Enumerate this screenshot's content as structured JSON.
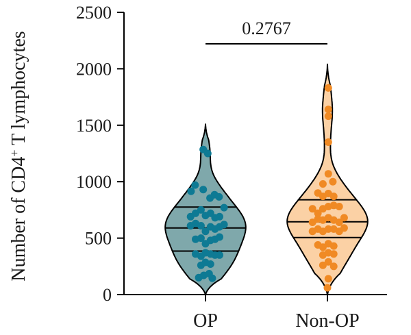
{
  "chart_data": {
    "type": "violin",
    "ylabel_prefix": "Number of CD4",
    "ylabel_sup": "+",
    "ylabel_suffix": " T lymphocytes",
    "ylim": [
      0,
      2500
    ],
    "yticks": [
      "0",
      "500",
      "1000",
      "1500",
      "2000",
      "2500"
    ],
    "categories": [
      "OP",
      "Non-OP"
    ],
    "comparison": {
      "label": "0.2767",
      "between": [
        "OP",
        "Non-OP"
      ]
    },
    "series": [
      {
        "category": "OP",
        "fill": "#7fa8ab",
        "point_color": "#0e7a94",
        "range": [
          0,
          1510
        ],
        "quartiles": [
          385,
          590,
          775
        ],
        "points": [
          {
            "x": -0.05,
            "y": 1285
          },
          {
            "x": 0.05,
            "y": 1250
          },
          {
            "x": -0.32,
            "y": 915
          },
          {
            "x": -0.23,
            "y": 970
          },
          {
            "x": -0.05,
            "y": 930
          },
          {
            "x": 0.1,
            "y": 855
          },
          {
            "x": 0.2,
            "y": 885
          },
          {
            "x": 0.3,
            "y": 865
          },
          {
            "x": -0.33,
            "y": 690
          },
          {
            "x": -0.22,
            "y": 720
          },
          {
            "x": -0.1,
            "y": 750
          },
          {
            "x": 0.0,
            "y": 700
          },
          {
            "x": 0.11,
            "y": 720
          },
          {
            "x": 0.21,
            "y": 680
          },
          {
            "x": 0.31,
            "y": 690
          },
          {
            "x": 0.41,
            "y": 770
          },
          {
            "x": -0.33,
            "y": 610
          },
          {
            "x": -0.22,
            "y": 630
          },
          {
            "x": -0.1,
            "y": 610
          },
          {
            "x": 0.0,
            "y": 560
          },
          {
            "x": 0.11,
            "y": 600
          },
          {
            "x": 0.21,
            "y": 580
          },
          {
            "x": 0.31,
            "y": 600
          },
          {
            "x": 0.41,
            "y": 620
          },
          {
            "x": -0.22,
            "y": 490
          },
          {
            "x": -0.1,
            "y": 500
          },
          {
            "x": 0.0,
            "y": 450
          },
          {
            "x": 0.11,
            "y": 480
          },
          {
            "x": 0.21,
            "y": 490
          },
          {
            "x": 0.31,
            "y": 510
          },
          {
            "x": -0.22,
            "y": 360
          },
          {
            "x": -0.1,
            "y": 340
          },
          {
            "x": 0.0,
            "y": 370
          },
          {
            "x": 0.11,
            "y": 360
          },
          {
            "x": 0.21,
            "y": 350
          },
          {
            "x": 0.31,
            "y": 350
          },
          {
            "x": -0.1,
            "y": 260
          },
          {
            "x": 0.0,
            "y": 285
          },
          {
            "x": 0.11,
            "y": 270
          },
          {
            "x": -0.15,
            "y": 150
          },
          {
            "x": -0.04,
            "y": 170
          },
          {
            "x": 0.08,
            "y": 185
          },
          {
            "x": 0.15,
            "y": 145
          }
        ]
      },
      {
        "category": "Non-OP",
        "fill": "#fbd1a5",
        "point_color": "#f08a24",
        "range": [
          0,
          2040
        ],
        "quartiles": [
          505,
          645,
          840
        ],
        "points": [
          {
            "x": 0.02,
            "y": 1830
          },
          {
            "x": 0.02,
            "y": 1640
          },
          {
            "x": 0.02,
            "y": 1580
          },
          {
            "x": 0.02,
            "y": 1350
          },
          {
            "x": 0.02,
            "y": 1070
          },
          {
            "x": -0.1,
            "y": 980
          },
          {
            "x": 0.12,
            "y": 1000
          },
          {
            "x": -0.21,
            "y": 900
          },
          {
            "x": -0.1,
            "y": 870
          },
          {
            "x": 0.02,
            "y": 895
          },
          {
            "x": 0.14,
            "y": 870
          },
          {
            "x": -0.33,
            "y": 760
          },
          {
            "x": -0.21,
            "y": 720
          },
          {
            "x": -0.1,
            "y": 760
          },
          {
            "x": 0.02,
            "y": 780
          },
          {
            "x": 0.14,
            "y": 790
          },
          {
            "x": 0.26,
            "y": 780
          },
          {
            "x": -0.33,
            "y": 640
          },
          {
            "x": -0.21,
            "y": 670
          },
          {
            "x": -0.1,
            "y": 660
          },
          {
            "x": 0.02,
            "y": 680
          },
          {
            "x": 0.14,
            "y": 660
          },
          {
            "x": 0.26,
            "y": 640
          },
          {
            "x": 0.37,
            "y": 680
          },
          {
            "x": -0.33,
            "y": 560
          },
          {
            "x": -0.21,
            "y": 580
          },
          {
            "x": -0.1,
            "y": 560
          },
          {
            "x": 0.02,
            "y": 580
          },
          {
            "x": 0.14,
            "y": 580
          },
          {
            "x": 0.26,
            "y": 560
          },
          {
            "x": 0.37,
            "y": 590
          },
          {
            "x": -0.21,
            "y": 440
          },
          {
            "x": -0.1,
            "y": 420
          },
          {
            "x": 0.02,
            "y": 450
          },
          {
            "x": 0.14,
            "y": 430
          },
          {
            "x": -0.1,
            "y": 350
          },
          {
            "x": 0.02,
            "y": 370
          },
          {
            "x": 0.14,
            "y": 360
          },
          {
            "x": -0.1,
            "y": 260
          },
          {
            "x": 0.02,
            "y": 290
          },
          {
            "x": 0.14,
            "y": 250
          },
          {
            "x": 0.02,
            "y": 140
          },
          {
            "x": 0.0,
            "y": 60
          }
        ]
      }
    ]
  }
}
